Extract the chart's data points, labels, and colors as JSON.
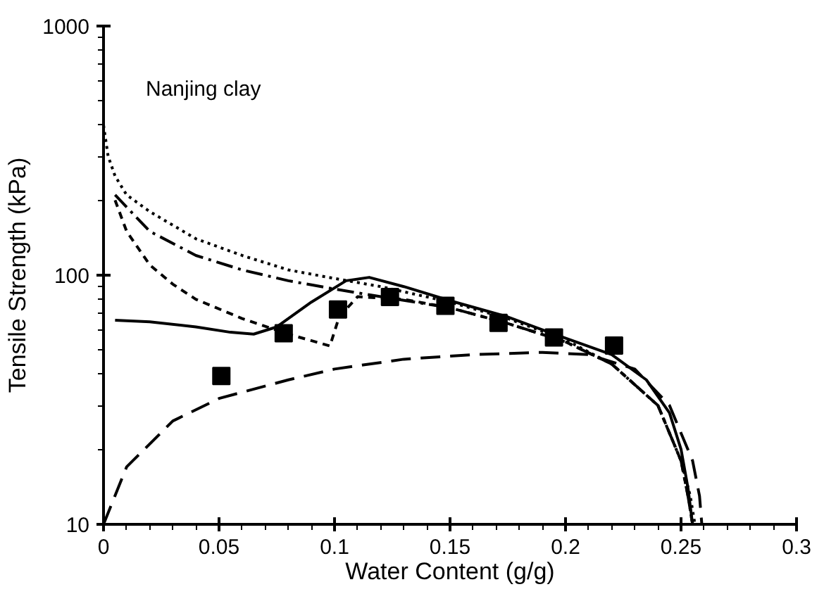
{
  "chart_data": {
    "type": "line",
    "xlabel": "Water Content (g/g)",
    "ylabel": "Tensile Strength (kPa)",
    "annotations": [
      "Nanjing clay"
    ],
    "log": "y",
    "grid": false,
    "xlim": [
      0,
      0.3
    ],
    "ylim": [
      10,
      1000
    ],
    "xticks": [
      0,
      0.05,
      0.1,
      0.15,
      0.2,
      0.25,
      0.3
    ],
    "yticks": [
      10,
      100,
      1000
    ],
    "series": [
      {
        "type": "scatter",
        "marker": "square",
        "color": "#000000",
        "x": [
          0.051,
          0.078,
          0.1015,
          0.124,
          0.148,
          0.171,
          0.195,
          0.221
        ],
        "values": [
          39.4,
          58.5,
          72.8,
          81.7,
          75.3,
          64.4,
          56.2,
          52.2
        ]
      },
      {
        "line_style": "solid",
        "color": "#000000",
        "x": [
          0.005,
          0.02,
          0.04,
          0.055,
          0.065,
          0.075,
          0.09,
          0.105,
          0.115,
          0.13,
          0.15,
          0.175,
          0.195,
          0.22,
          0.235,
          0.245,
          0.25,
          0.253,
          0.255
        ],
        "values": [
          66,
          65,
          62,
          59,
          58,
          62,
          78,
          95,
          98,
          90,
          79,
          68,
          58,
          48,
          38,
          28,
          20,
          14,
          10
        ]
      },
      {
        "line_style": "dashed",
        "color": "#000000",
        "x": [
          0.005,
          0.01,
          0.02,
          0.03,
          0.04,
          0.06,
          0.08,
          0.098,
          0.102,
          0.11,
          0.13,
          0.15,
          0.175,
          0.2,
          0.22,
          0.24,
          0.25,
          0.253,
          0.255
        ],
        "values": [
          200,
          150,
          110,
          92,
          80,
          67,
          58,
          52,
          68,
          82,
          80,
          74,
          64,
          54,
          44,
          30,
          18,
          13,
          10
        ]
      },
      {
        "line_style": "dashdot",
        "color": "#000000",
        "x": [
          0.005,
          0.02,
          0.04,
          0.06,
          0.08,
          0.1,
          0.12,
          0.15,
          0.175,
          0.2,
          0.22,
          0.24,
          0.25,
          0.253,
          0.255
        ],
        "values": [
          210,
          150,
          120,
          105,
          95,
          88,
          82,
          74,
          64,
          54,
          44,
          30,
          18,
          13,
          10
        ]
      },
      {
        "line_style": "dotted",
        "color": "#000000",
        "x": [
          0,
          0.002,
          0.005,
          0.01,
          0.02,
          0.04,
          0.06,
          0.08,
          0.1,
          0.12,
          0.15,
          0.175,
          0.2,
          0.22,
          0.24,
          0.25,
          0.254,
          0.256
        ],
        "values": [
          400,
          300,
          250,
          210,
          180,
          140,
          120,
          105,
          97,
          90,
          78,
          67,
          55,
          44,
          30,
          18,
          13,
          10
        ]
      },
      {
        "line_style": "longdash",
        "color": "#000000",
        "x": [
          0,
          0.01,
          0.03,
          0.05,
          0.08,
          0.1,
          0.13,
          0.16,
          0.19,
          0.21,
          0.23,
          0.245,
          0.255,
          0.258,
          0.259
        ],
        "values": [
          10,
          17,
          26,
          32,
          38,
          42,
          46,
          48,
          49,
          48,
          42,
          30,
          18,
          13,
          10
        ]
      }
    ]
  }
}
